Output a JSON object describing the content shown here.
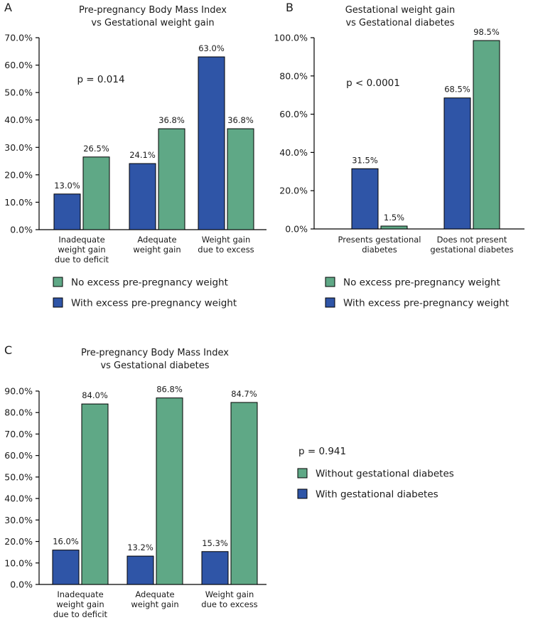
{
  "colors": {
    "no_excess": "#5fa886",
    "with_excess": "#2f55a7"
  },
  "chart_data": [
    {
      "panel": "A",
      "type": "bar",
      "title": [
        "Pre-pregnancy Body Mass Index",
        "vs Gestational weight gain"
      ],
      "categories": [
        [
          "Inadequate",
          "weight gain",
          "due to deficit"
        ],
        [
          "Adequate",
          "weight gain"
        ],
        [
          "Weight gain",
          "due to excess"
        ]
      ],
      "series": [
        {
          "name": "With excess pre-pregnancy weight",
          "color": "#2f55a7",
          "values": [
            13.0,
            24.1,
            63.0
          ],
          "labels": [
            "13.0%",
            "24.1%",
            "63.0%"
          ]
        },
        {
          "name": "No excess pre-pregnancy weight",
          "color": "#5fa886",
          "values": [
            26.5,
            36.8,
            36.8
          ],
          "labels": [
            "26.5%",
            "36.8%",
            "36.8%"
          ]
        }
      ],
      "yticks": [
        "0.0%",
        "10.0%",
        "20.0%",
        "30.0%",
        "40.0%",
        "50.0%",
        "60.0%",
        "70.0%"
      ],
      "ylim": [
        0,
        70
      ],
      "annotation": "p = 0.014",
      "legend": [
        {
          "label": "No excess pre-pregnancy weight",
          "color": "#5fa886"
        },
        {
          "label": "With excess pre-pregnancy weight",
          "color": "#2f55a7"
        }
      ]
    },
    {
      "panel": "B",
      "type": "bar",
      "title": [
        "Gestational weight gain",
        "vs Gestational diabetes"
      ],
      "categories": [
        [
          "Presents gestational",
          "diabetes"
        ],
        [
          "Does not present",
          "gestational diabetes"
        ]
      ],
      "series": [
        {
          "name": "With excess pre-pregnancy weight",
          "color": "#2f55a7",
          "values": [
            31.5,
            68.5
          ],
          "labels": [
            "31.5%",
            "68.5%"
          ]
        },
        {
          "name": "No excess pre-pregnancy weight",
          "color": "#5fa886",
          "values": [
            1.5,
            98.5
          ],
          "labels": [
            "1.5%",
            "98.5%"
          ]
        }
      ],
      "yticks": [
        "0.0%",
        "20.0%",
        "40.0%",
        "60.0%",
        "80.0%",
        "100.0%"
      ],
      "ylim": [
        0,
        100
      ],
      "annotation": "p < 0.0001",
      "legend": [
        {
          "label": "No excess pre-pregnancy weight",
          "color": "#5fa886"
        },
        {
          "label": "With excess pre-pregnancy weight",
          "color": "#2f55a7"
        }
      ]
    },
    {
      "panel": "C",
      "type": "bar",
      "title": [
        "Pre-pregnancy Body Mass Index",
        "vs Gestational diabetes"
      ],
      "categories": [
        [
          "Inadequate",
          "weight gain",
          "due to deficit"
        ],
        [
          "Adequate",
          "weight gain"
        ],
        [
          "Weight gain",
          "due to excess"
        ]
      ],
      "series": [
        {
          "name": "With gestational diabetes",
          "color": "#2f55a7",
          "values": [
            16.0,
            13.2,
            15.3
          ],
          "labels": [
            "16.0%",
            "13.2%",
            "15.3%"
          ]
        },
        {
          "name": "Without gestational diabetes",
          "color": "#5fa886",
          "values": [
            84.0,
            86.8,
            84.7
          ],
          "labels": [
            "84.0%",
            "86.8%",
            "84.7%"
          ]
        }
      ],
      "yticks": [
        "0.0%",
        "10.0%",
        "20.0%",
        "30.0%",
        "40.0%",
        "50.0%",
        "60.0%",
        "70.0%",
        "80.0%",
        "90.0%"
      ],
      "ylim": [
        0,
        90
      ],
      "annotation": "p = 0.941",
      "legend": [
        {
          "label": "Without gestational diabetes",
          "color": "#5fa886"
        },
        {
          "label": "With gestational diabetes",
          "color": "#2f55a7"
        }
      ]
    }
  ]
}
